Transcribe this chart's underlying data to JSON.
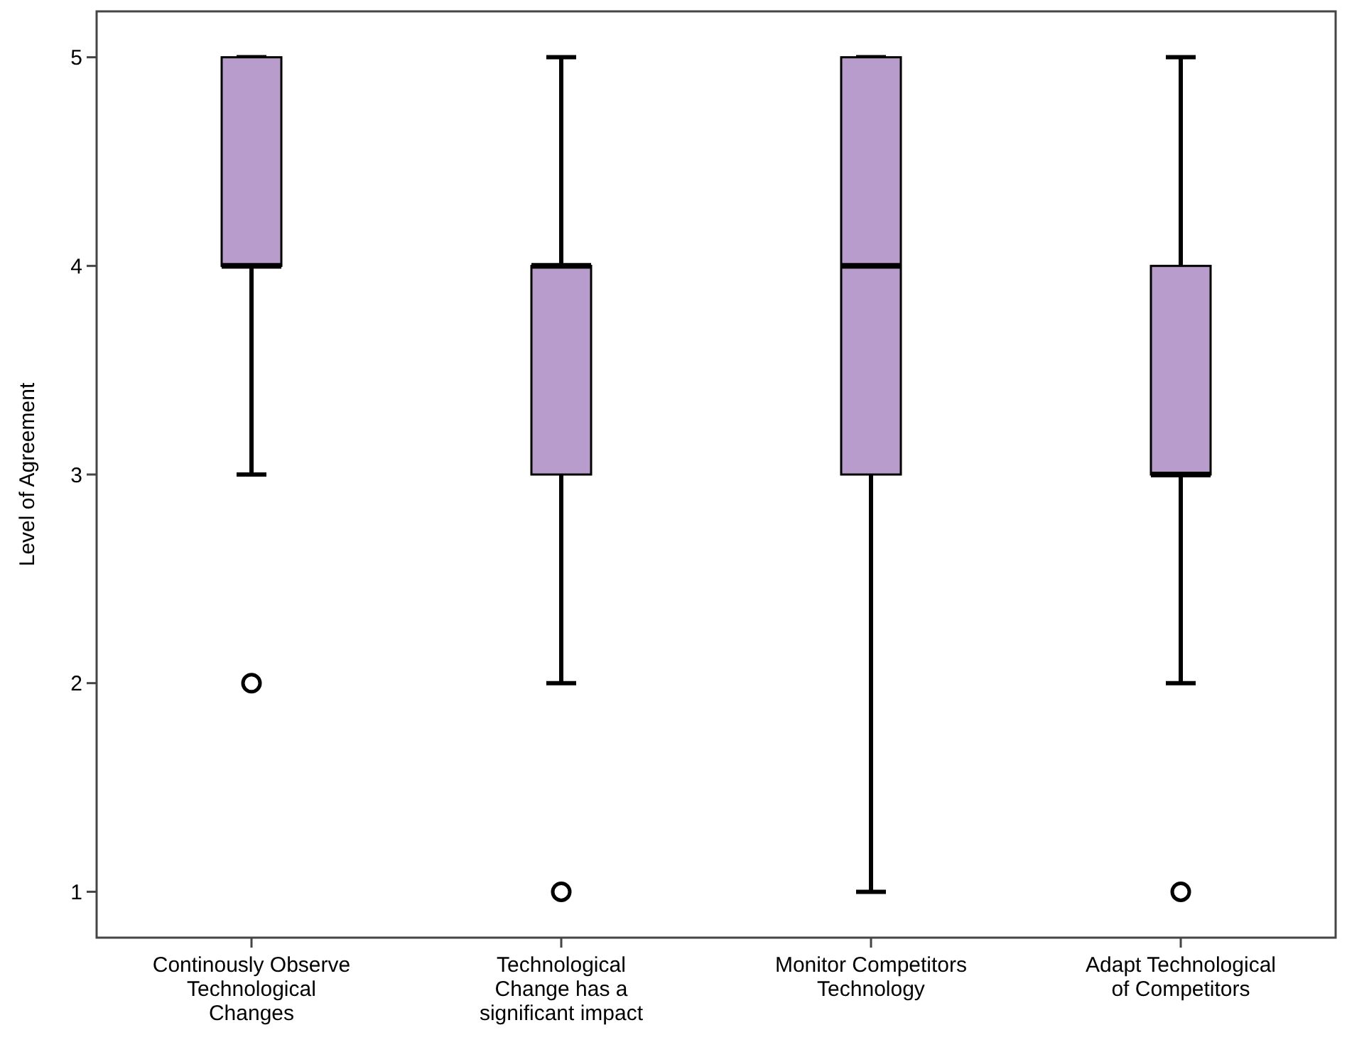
{
  "chart_data": {
    "type": "box",
    "ylabel": "Level of Agreement",
    "categories": [
      "Continously Observe Technological Changes",
      "Technological Change has a significant impact",
      "Monitor Competitors Technology",
      "Adapt Technological of Competitors"
    ],
    "boxes": [
      {
        "low": 3,
        "q1": 4,
        "median": 4,
        "q3": 5,
        "high": 5,
        "outliers": [
          2
        ]
      },
      {
        "low": 2,
        "q1": 3,
        "median": 4,
        "q3": 4,
        "high": 5,
        "outliers": [
          1
        ]
      },
      {
        "low": 1,
        "q1": 3,
        "median": 4,
        "q3": 5,
        "high": 5
      },
      {
        "low": 2,
        "q1": 3,
        "median": 3,
        "q3": 4,
        "high": 5,
        "outliers": [
          1
        ]
      }
    ],
    "color": "#b89ccb",
    "ylim": [
      0.78,
      5.22
    ],
    "yticks": [
      1,
      2,
      3,
      4,
      5
    ],
    "grid": false
  }
}
